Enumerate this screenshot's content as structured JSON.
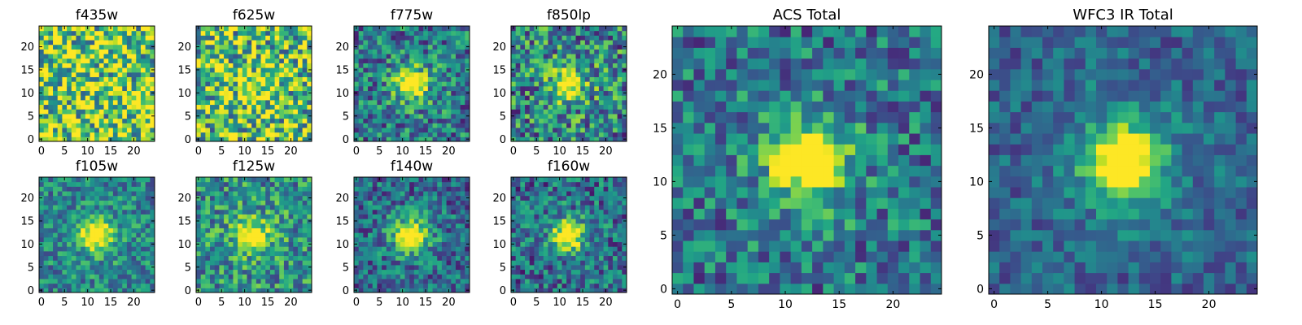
{
  "chart_data": [
    {
      "type": "heatmap",
      "title": "f435w",
      "xlabel": "",
      "ylabel": "",
      "x_ticks": [
        "0",
        "5",
        "10",
        "15",
        "20"
      ],
      "y_ticks": [
        "0",
        "5",
        "10",
        "15",
        "20"
      ],
      "xlim": [
        0,
        25
      ],
      "ylim": [
        0,
        25
      ],
      "grid_size": [
        25,
        25
      ],
      "peak_pixel": null,
      "peak_strength": 0.0,
      "noise_level": 0.5,
      "background": 0.8,
      "colormap": "viridis",
      "seed": 11
    },
    {
      "type": "heatmap",
      "title": "f625w",
      "xlabel": "",
      "ylabel": "",
      "x_ticks": [
        "0",
        "5",
        "10",
        "15",
        "20"
      ],
      "y_ticks": [
        "0",
        "5",
        "10",
        "15",
        "20"
      ],
      "xlim": [
        0,
        25
      ],
      "ylim": [
        0,
        25
      ],
      "grid_size": [
        25,
        25
      ],
      "peak_pixel": [
        12,
        11
      ],
      "peak_strength": 0.2,
      "noise_level": 0.45,
      "background": 0.7,
      "colormap": "viridis",
      "seed": 23
    },
    {
      "type": "heatmap",
      "title": "f775w",
      "xlabel": "",
      "ylabel": "",
      "x_ticks": [
        "0",
        "5",
        "10",
        "15",
        "20"
      ],
      "y_ticks": [
        "0",
        "5",
        "10",
        "15",
        "20"
      ],
      "xlim": [
        0,
        25
      ],
      "ylim": [
        0,
        25
      ],
      "grid_size": [
        25,
        25
      ],
      "peak_pixel": [
        12,
        12
      ],
      "peak_strength": 0.55,
      "noise_level": 0.32,
      "background": 0.4,
      "colormap": "viridis",
      "seed": 37
    },
    {
      "type": "heatmap",
      "title": "f850lp",
      "xlabel": "",
      "ylabel": "",
      "x_ticks": [
        "0",
        "5",
        "10",
        "15",
        "20"
      ],
      "y_ticks": [
        "0",
        "5",
        "10",
        "15",
        "20"
      ],
      "xlim": [
        0,
        25
      ],
      "ylim": [
        0,
        25
      ],
      "grid_size": [
        25,
        25
      ],
      "peak_pixel": [
        12,
        12
      ],
      "peak_strength": 0.45,
      "noise_level": 0.38,
      "background": 0.45,
      "colormap": "viridis",
      "seed": 41
    },
    {
      "type": "heatmap",
      "title": "f105w",
      "xlabel": "",
      "ylabel": "",
      "x_ticks": [
        "0",
        "5",
        "10",
        "15",
        "20"
      ],
      "y_ticks": [
        "0",
        "5",
        "10",
        "15",
        "20"
      ],
      "xlim": [
        0,
        25
      ],
      "ylim": [
        0,
        25
      ],
      "grid_size": [
        25,
        25
      ],
      "peak_pixel": [
        12,
        12
      ],
      "peak_strength": 0.5,
      "noise_level": 0.25,
      "background": 0.45,
      "colormap": "viridis",
      "seed": 53
    },
    {
      "type": "heatmap",
      "title": "f125w",
      "xlabel": "",
      "ylabel": "",
      "x_ticks": [
        "0",
        "5",
        "10",
        "15",
        "20"
      ],
      "y_ticks": [
        "0",
        "5",
        "10",
        "15",
        "20"
      ],
      "xlim": [
        0,
        25
      ],
      "ylim": [
        0,
        25
      ],
      "grid_size": [
        25,
        25
      ],
      "peak_pixel": [
        12,
        12
      ],
      "peak_strength": 0.4,
      "noise_level": 0.3,
      "background": 0.5,
      "colormap": "viridis",
      "seed": 67
    },
    {
      "type": "heatmap",
      "title": "f140w",
      "xlabel": "",
      "ylabel": "",
      "x_ticks": [
        "0",
        "5",
        "10",
        "15",
        "20"
      ],
      "y_ticks": [
        "0",
        "5",
        "10",
        "15",
        "20"
      ],
      "xlim": [
        0,
        25
      ],
      "ylim": [
        0,
        25
      ],
      "grid_size": [
        25,
        25
      ],
      "peak_pixel": [
        12,
        12
      ],
      "peak_strength": 0.55,
      "noise_level": 0.28,
      "background": 0.35,
      "colormap": "viridis",
      "seed": 71
    },
    {
      "type": "heatmap",
      "title": "f160w",
      "xlabel": "",
      "ylabel": "",
      "x_ticks": [
        "0",
        "5",
        "10",
        "15",
        "20"
      ],
      "y_ticks": [
        "0",
        "5",
        "10",
        "15",
        "20"
      ],
      "xlim": [
        0,
        25
      ],
      "ylim": [
        0,
        25
      ],
      "grid_size": [
        25,
        25
      ],
      "peak_pixel": [
        12,
        12
      ],
      "peak_strength": 0.55,
      "noise_level": 0.3,
      "background": 0.35,
      "colormap": "viridis",
      "seed": 83
    },
    {
      "type": "heatmap",
      "title": "ACS Total",
      "xlabel": "",
      "ylabel": "",
      "x_ticks": [
        "0",
        "5",
        "10",
        "15",
        "20"
      ],
      "y_ticks": [
        "0",
        "5",
        "10",
        "15",
        "20"
      ],
      "xlim": [
        0,
        25
      ],
      "ylim": [
        0,
        25
      ],
      "grid_size": [
        25,
        25
      ],
      "peak_pixel": [
        12,
        12
      ],
      "peak_strength": 0.6,
      "noise_level": 0.28,
      "background": 0.38,
      "colormap": "viridis",
      "seed": 97
    },
    {
      "type": "heatmap",
      "title": "WFC3 IR Total",
      "xlabel": "",
      "ylabel": "",
      "x_ticks": [
        "0",
        "5",
        "10",
        "15",
        "20"
      ],
      "y_ticks": [
        "0",
        "5",
        "10",
        "15",
        "20"
      ],
      "xlim": [
        0,
        25
      ],
      "ylim": [
        0,
        25
      ],
      "grid_size": [
        25,
        25
      ],
      "peak_pixel": [
        12,
        12
      ],
      "peak_strength": 0.65,
      "noise_level": 0.18,
      "background": 0.32,
      "colormap": "viridis",
      "seed": 101
    }
  ],
  "colors": {
    "frame": "#000000",
    "text": "#000000",
    "background": "#ffffff"
  }
}
